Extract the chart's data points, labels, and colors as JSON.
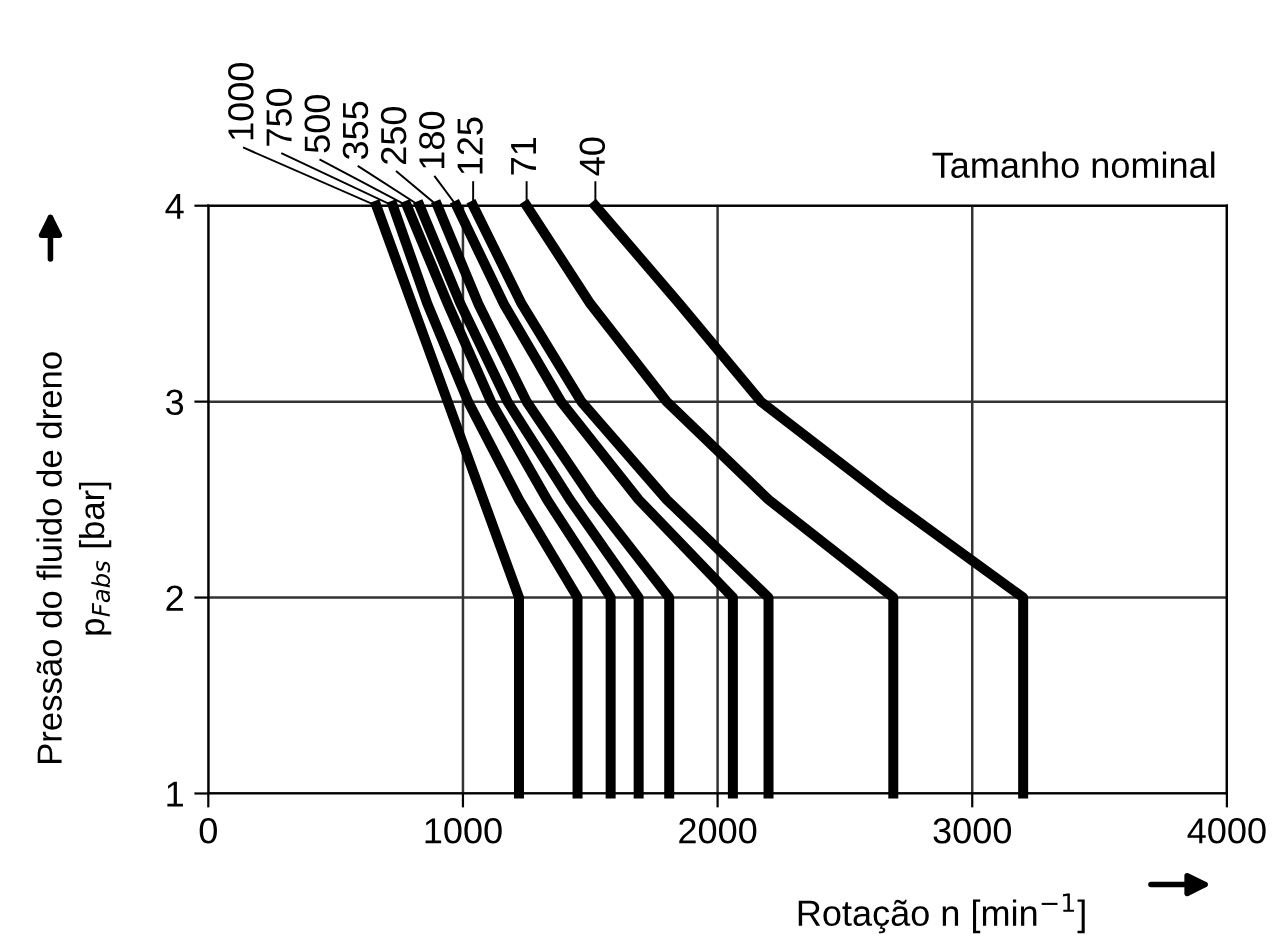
{
  "chart_data": {
    "type": "line",
    "xlabel": "Rotação n [min$^{−1}$]",
    "ylabel": "Pressão do fluido de dreno\np$_{Fabs}$ [bar]",
    "xlim": [
      0,
      4000
    ],
    "ylim": [
      1,
      4
    ],
    "xticks": [
      0,
      1000,
      2000,
      3000,
      4000
    ],
    "yticks": [
      1,
      2,
      3,
      4
    ],
    "grid": true,
    "legend": false,
    "marker": "none",
    "line_style": "solid",
    "annotations": [
      "Tamanho nominal"
    ],
    "series": [
      {
        "name": "1000",
        "color": "#000000",
        "x": [
          660,
          800,
          940,
          1080,
          1220,
          1220
        ],
        "values": [
          4,
          3.5,
          3,
          2.5,
          2,
          1
        ]
      },
      {
        "name": "750",
        "color": "#000000",
        "x": [
          725,
          860,
          1020,
          1220,
          1450,
          1450
        ],
        "values": [
          4,
          3.5,
          3,
          2.5,
          2,
          1
        ]
      },
      {
        "name": "500",
        "color": "#000000",
        "x": [
          780,
          940,
          1110,
          1330,
          1580,
          1580
        ],
        "values": [
          4,
          3.5,
          3,
          2.5,
          2,
          1
        ]
      },
      {
        "name": "355",
        "color": "#000000",
        "x": [
          830,
          990,
          1175,
          1420,
          1690,
          1690
        ],
        "values": [
          4,
          3.5,
          3,
          2.5,
          2,
          1
        ]
      },
      {
        "name": "250",
        "color": "#000000",
        "x": [
          900,
          1060,
          1250,
          1510,
          1810,
          1810
        ],
        "values": [
          4,
          3.5,
          3,
          2.5,
          2,
          1
        ]
      },
      {
        "name": "180",
        "color": "#000000",
        "x": [
          975,
          1160,
          1385,
          1690,
          2060,
          2060
        ],
        "values": [
          4,
          3.5,
          3,
          2.5,
          2,
          1
        ]
      },
      {
        "name": "125",
        "color": "#000000",
        "x": [
          1040,
          1230,
          1465,
          1800,
          2200,
          2200
        ],
        "values": [
          4,
          3.5,
          3,
          2.5,
          2,
          1
        ]
      },
      {
        "name": "71",
        "color": "#000000",
        "x": [
          1250,
          1500,
          1800,
          2200,
          2690,
          2690
        ],
        "values": [
          4,
          3.5,
          3,
          2.5,
          2,
          1
        ]
      },
      {
        "name": "40",
        "color": "#000000",
        "x": [
          1520,
          1850,
          2170,
          2670,
          3200,
          3200
        ],
        "values": [
          4,
          3.5,
          3,
          2.5,
          2,
          1
        ]
      }
    ]
  }
}
